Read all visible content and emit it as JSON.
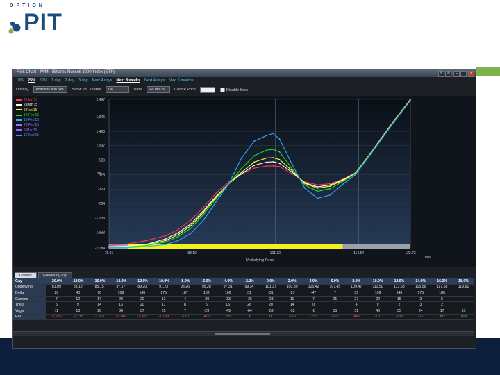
{
  "logo": {
    "top": "OPTION",
    "main": "PIT"
  },
  "window": {
    "title": "Risk Chart - IWM - iShares Russell 2000 Index (ETF)",
    "buttons": [
      "edit-icon",
      "wrench-icon",
      "minimize-icon",
      "maximize-icon",
      "close-icon"
    ]
  },
  "zoom": [
    {
      "label": "10%",
      "active": false
    },
    {
      "label": "25%",
      "active": true
    },
    {
      "label": "50%",
      "active": false
    },
    {
      "label": "1 day",
      "active": false
    },
    {
      "label": "2 day",
      "active": false
    },
    {
      "label": "3 day",
      "active": false
    },
    {
      "label": "Next 4 days",
      "active": false
    },
    {
      "label": "Next 8 weeks",
      "active": true
    },
    {
      "label": "Next 4 days",
      "active": false
    },
    {
      "label": "Next 6 months",
      "active": false
    }
  ],
  "controls": {
    "display_label": "Display",
    "display_value": "Positions and Sim.",
    "shares_label": "Show vol. shares",
    "shares_value": "0%",
    "date_label": "Date",
    "date_value": "22-Jan-15",
    "centre_label": "Centre Price",
    "centre_value": "",
    "disable_label": "Disable lines"
  },
  "legend": [
    {
      "label": "22Jan'15",
      "color": "#ff3b3b"
    },
    {
      "label": "29Jan'15",
      "color": "#ffffff"
    },
    {
      "label": "5 Feb'15",
      "color": "#ffff33"
    },
    {
      "label": "12 Feb'15",
      "color": "#22dd22"
    },
    {
      "label": "19 Feb'15",
      "color": "#33aaff"
    },
    {
      "label": "26 Feb'15",
      "color": "#aa66ff"
    },
    {
      "label": "5 Mar'15",
      "color": "#8866ff"
    },
    {
      "label": "12 Mar'15",
      "color": "#5588ff"
    }
  ],
  "chart_data": {
    "type": "line",
    "xlabel": "Underlying Price",
    "ylabel": "P/L",
    "time_label": "Time",
    "xlim": [
      75.01,
      122.72
    ],
    "ylim": [
      -2184,
      2497
    ],
    "x_ticks": [
      "75.01",
      "88.16",
      "101.32",
      "114.54",
      "122.72"
    ],
    "y_ticks": [
      "2,497",
      "1,946",
      "1,490",
      "1,037",
      "580",
      "125",
      "-329",
      "-784",
      "-1,238",
      "-1,693",
      "-2,184"
    ],
    "x": [
      75,
      78,
      81,
      84,
      86,
      88,
      90,
      92,
      94,
      96,
      98,
      100,
      101,
      102,
      104,
      106,
      108,
      110,
      112,
      114,
      116,
      118,
      120,
      122.7
    ],
    "series": [
      {
        "name": "22Jan'15",
        "color": "#ff3b3b",
        "values": [
          -2100,
          -2060,
          -1950,
          -1800,
          -1600,
          -1300,
          -900,
          -450,
          -100,
          150,
          330,
          400,
          400,
          380,
          150,
          -100,
          -200,
          -160,
          -20,
          180,
          700,
          1250,
          1800,
          2497
        ]
      },
      {
        "name": "29Jan'15",
        "color": "#ffffff",
        "values": [
          -2150,
          -2130,
          -2070,
          -1900,
          -1700,
          -1420,
          -1000,
          -550,
          -150,
          150,
          420,
          520,
          530,
          480,
          200,
          -130,
          -260,
          -200,
          -40,
          170,
          690,
          1240,
          1790,
          2480
        ]
      },
      {
        "name": "5 Feb'15",
        "color": "#ffff33",
        "values": [
          -2160,
          -2140,
          -2090,
          -1950,
          -1760,
          -1480,
          -1050,
          -580,
          -160,
          200,
          520,
          650,
          660,
          600,
          250,
          -150,
          -300,
          -240,
          -60,
          160,
          680,
          1230,
          1780,
          2470
        ]
      },
      {
        "name": "12 Feb'15",
        "color": "#22dd22",
        "values": [
          -2170,
          -2150,
          -2110,
          -2000,
          -1820,
          -1560,
          -1120,
          -620,
          -160,
          320,
          720,
          900,
          920,
          840,
          310,
          -200,
          -400,
          -320,
          -90,
          150,
          670,
          1220,
          1770,
          2460
        ]
      },
      {
        "name": "19 Feb'15",
        "color": "#33aaff",
        "values": [
          -2180,
          -2170,
          -2140,
          -2080,
          -1950,
          -1720,
          -1300,
          -720,
          -150,
          650,
          1180,
          1360,
          1420,
          1250,
          450,
          -300,
          -620,
          -520,
          -180,
          120,
          650,
          1200,
          1750,
          2450
        ]
      }
    ],
    "price_band": {
      "start": 78,
      "end": 112
    },
    "grid": true
  },
  "greeks_tabs": [
    {
      "label": "Greeks",
      "active": true
    },
    {
      "label": "Greeks by exp",
      "active": false
    }
  ],
  "greeks": {
    "columns": [
      "-20.0%",
      "-18.0%",
      "-16.0%",
      "-14.0%",
      "-12.0%",
      "-10.0%",
      "-8.0%",
      "-6.0%",
      "-4.0%",
      "-2.0%",
      "0.0%",
      "2.0%",
      "4.0%",
      "6.0%",
      "8.0%",
      "10.0%",
      "12.0%",
      "14.0%",
      "16.0%",
      "18.0%"
    ],
    "rows": [
      {
        "label": "Underlying",
        "values": [
          "81.09",
          "83.12",
          "85.15",
          "87.17",
          "89.20",
          "91.23",
          "93.26",
          "95.28",
          "97.31",
          "99.34",
          "101.37",
          "103.39",
          "105.42",
          "107.45",
          "109.47",
          "111.50",
          "113.53",
          "115.56",
          "117.58",
          "119.61"
        ]
      },
      {
        "label": "Delta",
        "values": [
          "20",
          "40",
          "70",
          "109",
          "145",
          "175",
          "187",
          "162",
          "106",
          "31",
          "-31",
          "-27",
          "-47",
          "7",
          "59",
          "109",
          "146",
          "175",
          "185",
          ""
        ]
      },
      {
        "label": "Gamma",
        "values": [
          "7",
          "12",
          "17",
          "20",
          "20",
          "13",
          "4",
          "-20",
          "-33",
          "-36",
          "-28",
          "11",
          "7",
          "21",
          "27",
          "22",
          "15",
          "2",
          "5",
          ""
        ]
      },
      {
        "label": "Theta",
        "values": [
          "5",
          "9",
          "14",
          "13",
          "20",
          "17",
          "8",
          "5",
          "16",
          "26",
          "20",
          "14",
          "0",
          "7",
          "4",
          "9",
          "2",
          "3",
          "2",
          ""
        ]
      },
      {
        "label": "Vega",
        "values": [
          "11",
          "18",
          "28",
          "36",
          "37",
          "25",
          "7",
          "-23",
          "-49",
          "-64",
          "-59",
          "-33",
          "-8",
          "15",
          "31",
          "40",
          "35",
          "24",
          "17",
          "13"
        ]
      },
      {
        "label": "P&L",
        "values": [
          "-2,255",
          "-2,215",
          "-1,962",
          "-1,742",
          "-1,365",
          "-1,139",
          "-770",
          "-401",
          "-58",
          "3",
          "0",
          "-119",
          "-232",
          "-125",
          "-490",
          "-110",
          "-235",
          "-21",
          "352",
          "768"
        ]
      }
    ]
  }
}
